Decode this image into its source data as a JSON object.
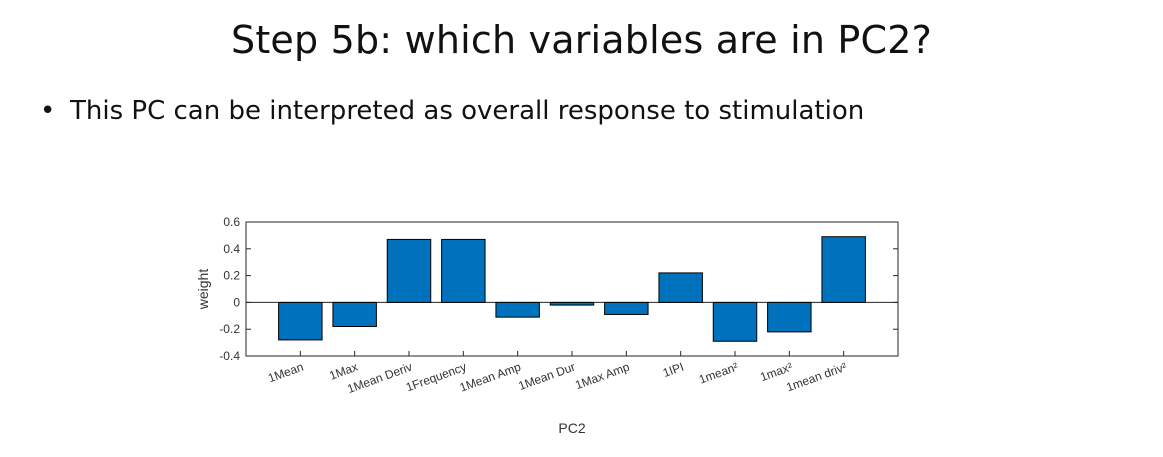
{
  "slide": {
    "title": "Step 5b: which variables are in PC2?",
    "bullet": "This PC can be interpreted as overall response to stimulation"
  },
  "chart_data": {
    "type": "bar",
    "categories": [
      "1Mean",
      "1Max",
      "1Mean Deriv",
      "1Frequency",
      "1Mean Amp",
      "1Mean Dur",
      "1Max Amp",
      "1IPI",
      "1mean²",
      "1max²",
      "1mean driv²"
    ],
    "values": [
      -0.28,
      -0.18,
      0.47,
      0.47,
      -0.11,
      -0.02,
      -0.09,
      0.22,
      -0.29,
      -0.22,
      0.49
    ],
    "xlabel": "PC2",
    "ylabel": "weight",
    "ylim": [
      -0.4,
      0.6
    ],
    "yticks": [
      0.6,
      0.4,
      0.2,
      0,
      -0.2,
      -0.4
    ],
    "bar_color": "#0072BD",
    "grid": false
  }
}
